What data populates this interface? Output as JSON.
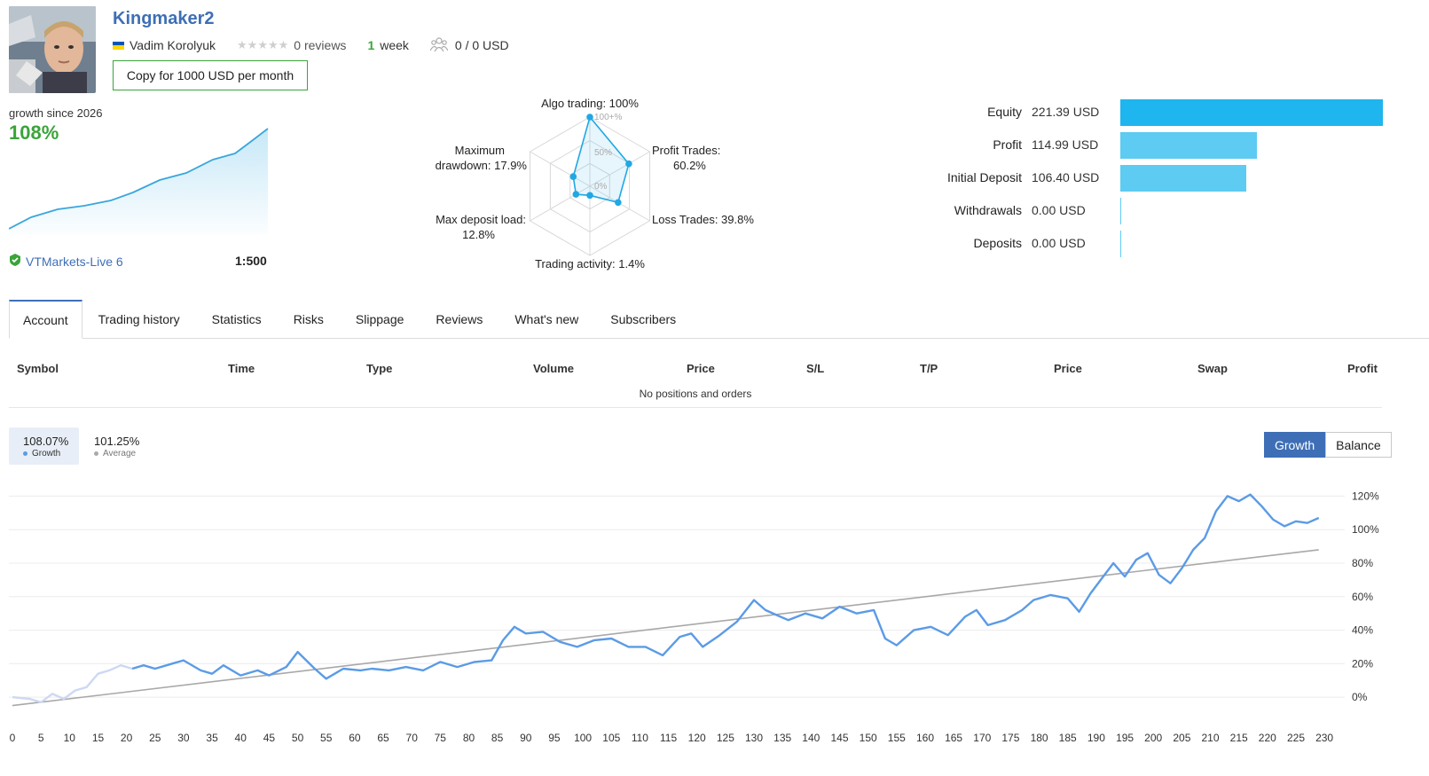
{
  "header": {
    "title": "Kingmaker2",
    "author": "Vadim Korolyuk",
    "reviews_text": "0 reviews",
    "weeks_num": "1",
    "weeks_label": "week",
    "subscribers_text": "0 / 0 USD",
    "copy_button": "Copy for 1000 USD per month"
  },
  "summary": {
    "growth_label": "growth since 2026",
    "growth_value": "108%",
    "broker": "VTMarkets-Live 6",
    "leverage": "1:500"
  },
  "radar": {
    "labels": {
      "algo": "Algo trading: 100%",
      "profit": "Profit Trades:",
      "profit_val": "60.2%",
      "loss": "Loss Trades: 39.8%",
      "activity": "Trading activity: 1.4%",
      "load": "Max deposit load:",
      "load_val": "12.8%",
      "dd": "Maximum",
      "dd_val": "drawdown: 17.9%"
    },
    "ring_labels": [
      "100+%",
      "50%",
      "0%"
    ],
    "values": [
      100,
      60.2,
      39.8,
      1.4,
      12.8,
      17.9
    ]
  },
  "stats": [
    {
      "label": "Equity",
      "value": "221.39 USD",
      "amount": 221.39,
      "color": "#1fb5ee"
    },
    {
      "label": "Profit",
      "value": "114.99 USD",
      "amount": 114.99,
      "color": "#5dcbf2"
    },
    {
      "label": "Initial Deposit",
      "value": "106.40 USD",
      "amount": 106.4,
      "color": "#5dcbf2"
    },
    {
      "label": "Withdrawals",
      "value": "0.00 USD",
      "amount": 0,
      "color": "#5dcbf2"
    },
    {
      "label": "Deposits",
      "value": "0.00 USD",
      "amount": 0,
      "color": "#5dcbf2"
    }
  ],
  "tabs": [
    "Account",
    "Trading history",
    "Statistics",
    "Risks",
    "Slippage",
    "Reviews",
    "What's new",
    "Subscribers"
  ],
  "positions": {
    "columns": [
      "Symbol",
      "Time",
      "Type",
      "Volume",
      "Price",
      "S/L",
      "T/P",
      "Price",
      "Swap",
      "Profit"
    ],
    "empty_text": "No positions and orders"
  },
  "chart_legend": {
    "growth_value": "108.07%",
    "growth_label": "Growth",
    "average_value": "101.25%",
    "average_label": "Average"
  },
  "chart_toggle": {
    "growth": "Growth",
    "balance": "Balance"
  },
  "colors": {
    "accent": "#3e6fb6",
    "green": "#3aa43a",
    "growth_line": "#5b9be6",
    "average_line": "#a8a8a8"
  },
  "chart_data": {
    "type": "line",
    "x_ticks": [
      "0",
      "5",
      "10",
      "15",
      "20",
      "25",
      "30",
      "35",
      "40",
      "45",
      "50",
      "55",
      "60",
      "65",
      "70",
      "75",
      "80",
      "85",
      "90",
      "95",
      "100",
      "105",
      "110",
      "115",
      "120",
      "125",
      "130",
      "135",
      "140",
      "145",
      "150",
      "155",
      "160",
      "165",
      "170",
      "175",
      "180",
      "185",
      "190",
      "195",
      "200",
      "205",
      "210",
      "215",
      "220",
      "225",
      "230"
    ],
    "y_ticks": [
      "120%",
      "100%",
      "80%",
      "60%",
      "40%",
      "20%",
      "0%"
    ],
    "ylim": [
      -10,
      125
    ],
    "xlim": [
      0,
      232
    ],
    "series": [
      {
        "name": "Growth",
        "x": [
          0,
          3,
          5,
          7,
          9,
          11,
          13,
          15,
          17,
          19,
          21,
          23,
          25,
          28,
          30,
          33,
          35,
          37,
          40,
          43,
          45,
          48,
          50,
          53,
          55,
          58,
          61,
          63,
          66,
          69,
          72,
          75,
          78,
          81,
          84,
          86,
          88,
          90,
          93,
          96,
          99,
          102,
          105,
          108,
          111,
          114,
          117,
          119,
          121,
          124,
          127,
          130,
          132,
          134,
          136,
          139,
          142,
          145,
          148,
          151,
          153,
          155,
          158,
          161,
          164,
          167,
          169,
          171,
          174,
          177,
          179,
          182,
          185,
          187,
          189,
          191,
          193,
          195,
          197,
          199,
          201,
          203,
          205,
          207,
          209,
          211,
          213,
          215,
          217,
          219,
          221,
          223,
          225,
          227,
          229
        ],
        "y": [
          0,
          -1,
          -3,
          2,
          -1,
          4,
          6,
          14,
          16,
          19,
          17,
          19,
          17,
          20,
          22,
          16,
          14,
          19,
          13,
          16,
          13,
          18,
          27,
          17,
          11,
          17,
          16,
          17,
          16,
          18,
          16,
          21,
          18,
          21,
          22,
          34,
          42,
          38,
          39,
          33,
          30,
          34,
          35,
          30,
          30,
          25,
          36,
          38,
          30,
          37,
          45,
          58,
          52,
          49,
          46,
          50,
          47,
          54,
          50,
          52,
          35,
          31,
          40,
          42,
          37,
          48,
          52,
          43,
          46,
          52,
          58,
          61,
          59,
          51,
          62,
          71,
          80,
          72,
          82,
          86,
          73,
          68,
          77,
          88,
          95,
          111,
          120,
          117,
          121,
          114,
          106,
          102,
          105,
          104,
          107
        ]
      },
      {
        "name": "Average",
        "x": [
          0,
          229
        ],
        "y": [
          -5,
          88
        ]
      }
    ]
  }
}
